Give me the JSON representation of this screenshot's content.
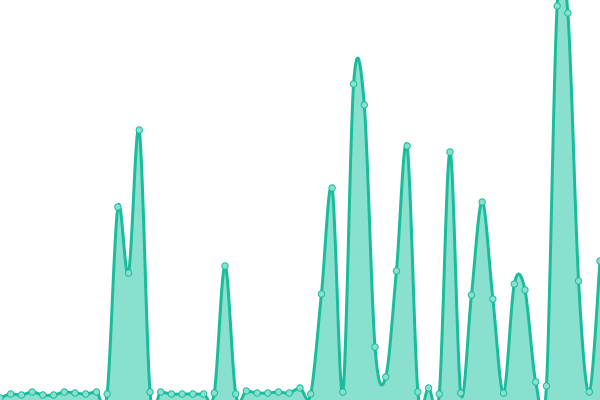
{
  "chart_data": {
    "type": "area",
    "title": "",
    "xlabel": "",
    "ylabel": "",
    "grid": false,
    "legend": "none",
    "smooth": true,
    "markers": true,
    "ylim": [
      0,
      400
    ],
    "colors": {
      "line": "#1abc9c",
      "fill": "#8ae0cf",
      "marker_fill": "#8ae0cf"
    },
    "series": [
      {
        "values": [
          2,
          6,
          5,
          8,
          5,
          5,
          8,
          7,
          6,
          8,
          6,
          193,
          127,
          270,
          8,
          8,
          6,
          6,
          6,
          6,
          7,
          134,
          6,
          9,
          7,
          7,
          8,
          7,
          12,
          6,
          106,
          212,
          8,
          316,
          295,
          53,
          23,
          129,
          254,
          8,
          12,
          6,
          248,
          7,
          105,
          198,
          101,
          7,
          116,
          110,
          18,
          14,
          394,
          387,
          119,
          8,
          139
        ]
      }
    ]
  }
}
